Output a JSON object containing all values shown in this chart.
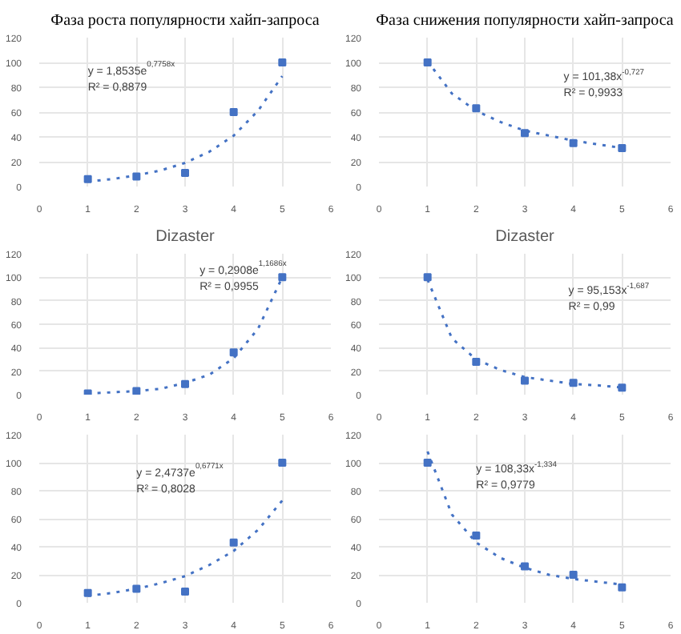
{
  "chart_data": [
    {
      "type": "scatter",
      "title": "Фаза роста популярности хайп-запроса",
      "x": [
        1,
        2,
        3,
        4,
        5
      ],
      "values": [
        6,
        8,
        11,
        60,
        100
      ],
      "color": "#4472c4",
      "series": [
        {
          "type": "line",
          "marker": "none",
          "x": [
            1,
            1.5,
            2,
            2.5,
            3,
            3.5,
            4,
            4.5,
            5
          ],
          "values": [
            4,
            6,
            9,
            13,
            19,
            28,
            41,
            61,
            89
          ],
          "color": "#4472c4",
          "line_style": "dotted"
        }
      ],
      "annotations": [
        "y = 1,8535e$^{0,7758x}$",
        "R² = 0,8879"
      ],
      "xlim": [
        0,
        6
      ],
      "xticks": [
        0,
        1,
        2,
        3,
        4,
        5,
        6
      ],
      "ylim": [
        0,
        120
      ],
      "yticks": [
        0,
        20,
        40,
        60,
        80,
        100,
        120
      ],
      "grid": true,
      "marker": "square"
    },
    {
      "type": "scatter",
      "title": "Фаза снижения популярности хайп-запроса",
      "x": [
        1,
        2,
        3,
        4,
        5
      ],
      "values": [
        100,
        63,
        43,
        35,
        31
      ],
      "color": "#4472c4",
      "series": [
        {
          "type": "line",
          "marker": "none",
          "x": [
            1,
            1.5,
            2,
            2.5,
            3,
            3.5,
            4,
            4.5,
            5
          ],
          "values": [
            101,
            75,
            61,
            52,
            45,
            41,
            37,
            34,
            31
          ],
          "color": "#4472c4",
          "line_style": "dotted"
        }
      ],
      "annotations": [
        "y = 101,38x$^{-0,727}$",
        "R² = 0,9933"
      ],
      "xlim": [
        0,
        6
      ],
      "xticks": [
        0,
        1,
        2,
        3,
        4,
        5,
        6
      ],
      "ylim": [
        0,
        120
      ],
      "yticks": [
        0,
        20,
        40,
        60,
        80,
        100,
        120
      ],
      "grid": true,
      "marker": "square"
    },
    {
      "type": "scatter",
      "title": "Dizaster",
      "x": [
        1,
        2,
        3,
        4,
        5
      ],
      "values": [
        1,
        3,
        9,
        36,
        100
      ],
      "color": "#4472c4",
      "series": [
        {
          "type": "line",
          "marker": "none",
          "x": [
            1,
            1.5,
            2,
            2.5,
            3,
            3.5,
            4,
            4.5,
            5
          ],
          "values": [
            1,
            2,
            3,
            5,
            10,
            17,
            31,
            56,
            100
          ],
          "color": "#4472c4",
          "line_style": "dotted"
        }
      ],
      "annotations": [
        "y = 0,2908e$^{1,1686x}$",
        "R² = 0,9955"
      ],
      "xlim": [
        0,
        6
      ],
      "xticks": [
        0,
        1,
        2,
        3,
        4,
        5,
        6
      ],
      "ylim": [
        0,
        120
      ],
      "yticks": [
        0,
        20,
        40,
        60,
        80,
        100,
        120
      ],
      "grid": true,
      "marker": "square"
    },
    {
      "type": "scatter",
      "title": "Dizaster",
      "x": [
        1,
        2,
        3,
        4,
        5
      ],
      "values": [
        100,
        28,
        12,
        10,
        6
      ],
      "color": "#4472c4",
      "series": [
        {
          "type": "line",
          "marker": "none",
          "x": [
            1,
            1.5,
            2,
            2.5,
            3,
            3.5,
            4,
            4.5,
            5
          ],
          "values": [
            98,
            48,
            30,
            21,
            15,
            12,
            9,
            8,
            6
          ],
          "color": "#4472c4",
          "line_style": "dotted"
        }
      ],
      "annotations": [
        "y = 95,153x$^{-1,687}$",
        "R² = 0,99"
      ],
      "xlim": [
        0,
        6
      ],
      "xticks": [
        0,
        1,
        2,
        3,
        4,
        5,
        6
      ],
      "ylim": [
        0,
        120
      ],
      "yticks": [
        0,
        20,
        40,
        60,
        80,
        100,
        120
      ],
      "grid": true,
      "marker": "square"
    },
    {
      "type": "scatter",
      "x": [
        1,
        2,
        3,
        4,
        5
      ],
      "values": [
        7,
        10,
        8,
        43,
        100
      ],
      "color": "#4472c4",
      "series": [
        {
          "type": "line",
          "marker": "none",
          "x": [
            1,
            1.5,
            2,
            2.5,
            3,
            3.5,
            4,
            4.5,
            5
          ],
          "values": [
            5,
            7,
            10,
            14,
            19,
            27,
            37,
            52,
            73
          ],
          "color": "#4472c4",
          "line_style": "dotted"
        }
      ],
      "annotations": [
        "y = 2,4737e$^{0,6771x}$",
        "R² = 0,8028"
      ],
      "xlim": [
        0,
        6
      ],
      "xticks": [
        0,
        1,
        2,
        3,
        4,
        5,
        6
      ],
      "ylim": [
        0,
        120
      ],
      "yticks": [
        0,
        20,
        40,
        60,
        80,
        100,
        120
      ],
      "grid": true,
      "marker": "square"
    },
    {
      "type": "scatter",
      "x": [
        1,
        2,
        3,
        4,
        5
      ],
      "values": [
        100,
        48,
        26,
        20,
        11
      ],
      "color": "#4472c4",
      "series": [
        {
          "type": "line",
          "marker": "none",
          "x": [
            1,
            1.5,
            2,
            2.5,
            3,
            3.5,
            4,
            4.5,
            5
          ],
          "values": [
            108,
            63,
            43,
            32,
            25,
            20,
            17,
            15,
            13
          ],
          "color": "#4472c4",
          "line_style": "dotted"
        }
      ],
      "annotations": [
        "y = 108,33x$^{-1,334}$",
        "R² = 0,9779"
      ],
      "xlim": [
        0,
        6
      ],
      "xticks": [
        0,
        1,
        2,
        3,
        4,
        5,
        6
      ],
      "ylim": [
        0,
        120
      ],
      "yticks": [
        0,
        20,
        40,
        60,
        80,
        100,
        120
      ],
      "grid": true,
      "marker": "square"
    }
  ]
}
